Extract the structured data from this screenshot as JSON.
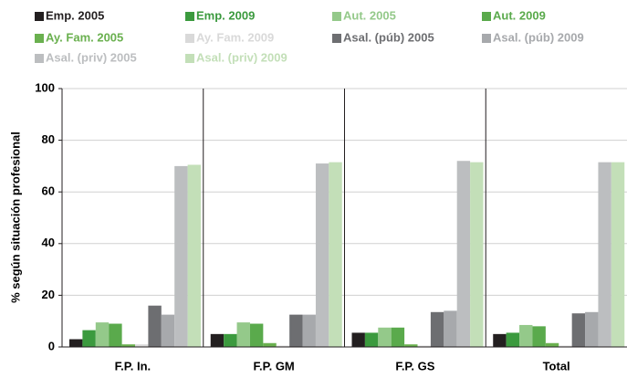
{
  "chart_data": {
    "type": "bar",
    "y_label": "% según situación profesional",
    "categories": [
      "F.P. In.",
      "F.P. GM",
      "F.P. GS",
      "Total"
    ],
    "ylim": [
      0,
      100
    ],
    "yticks": [
      0,
      20,
      40,
      60,
      80,
      100
    ],
    "grid": true,
    "series": [
      {
        "name": "Emp. 2005",
        "color": "#231f20",
        "values": [
          3,
          5,
          5.5,
          5
        ]
      },
      {
        "name": "Emp. 2009",
        "color": "#3b9a3e",
        "values": [
          6.5,
          5,
          5.5,
          5.5
        ]
      },
      {
        "name": "Aut. 2005",
        "color": "#94c98a",
        "values": [
          9.5,
          9.5,
          7.5,
          8.5
        ]
      },
      {
        "name": "Aut. 2009",
        "color": "#5aaa4c",
        "values": [
          9,
          9,
          7.5,
          8
        ]
      },
      {
        "name": "Ay. Fam. 2005",
        "color": "#6ab04f",
        "values": [
          1,
          1.5,
          1,
          1.5
        ]
      },
      {
        "name": "Ay. Fam. 2009",
        "color": "#d9d9d9",
        "values": [
          1,
          0.5,
          0.5,
          0.5
        ]
      },
      {
        "name": "Asal. (púb) 2005",
        "color": "#6d6e71",
        "values": [
          16,
          12.5,
          13.5,
          13
        ]
      },
      {
        "name": "Asal. (púb) 2009",
        "color": "#a7a9ac",
        "values": [
          12.5,
          12.5,
          14,
          13.5
        ]
      },
      {
        "name": "Asal. (priv) 2005",
        "color": "#bcbec0",
        "values": [
          70,
          71,
          72,
          71.5
        ]
      },
      {
        "name": "Asal. (priv) 2009",
        "color": "#c3dfb8",
        "values": [
          70.5,
          71.5,
          71.5,
          71.5
        ]
      }
    ]
  }
}
